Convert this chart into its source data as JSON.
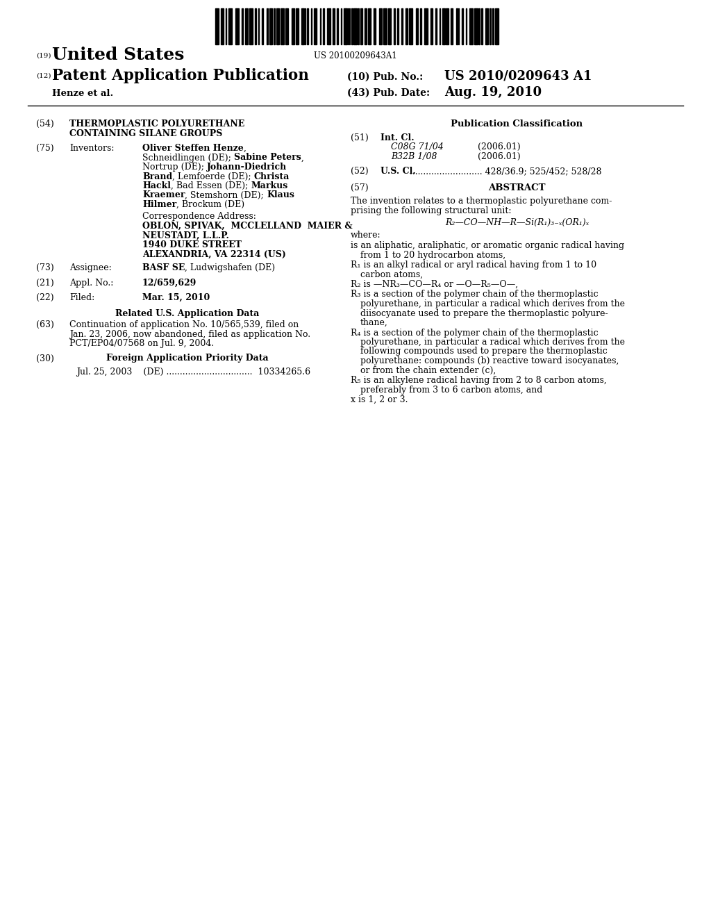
{
  "bg_color": "#ffffff",
  "barcode_text": "US 20100209643A1",
  "header": {
    "country_label": "(19)",
    "country": "United States",
    "type_label": "(12)",
    "type": "Patent Application Publication",
    "author": "Henze et al.",
    "pub_no_label": "(10) Pub. No.:",
    "pub_no": "US 2010/0209643 A1",
    "date_label": "(43) Pub. Date:",
    "date": "Aug. 19, 2010"
  },
  "left_col": {
    "title_label": "(54)",
    "title_line1": "THERMOPLASTIC POLYURETHANE",
    "title_line2": "CONTAINING SILANE GROUPS",
    "inventors_label": "(75)",
    "inventors_key": "Inventors:",
    "inventors_lines": [
      [
        "Oliver Steffen Henze",
        ","
      ],
      [
        "Schneidlingen (DE); ",
        "Sabine Peters",
        ","
      ],
      [
        "Nortrup (DE); ",
        "Johann-Diedrich"
      ],
      [
        "Brand",
        ", Lemfoerde (DE); ",
        "Christa"
      ],
      [
        "Hackl",
        ", Bad Essen (DE); ",
        "Markus"
      ],
      [
        "Kraemer",
        ", Stemshorn (DE); ",
        "Klaus"
      ],
      [
        "Hilmer",
        ", Brockum (DE)"
      ]
    ],
    "corr_label": "Correspondence Address:",
    "corr_lines": [
      "OBLON, SPIVAK,  MCCLELLAND  MAIER &",
      "NEUSTADT, L.L.P.",
      "1940 DUKE STREET",
      "ALEXANDRIA, VA 22314 (US)"
    ],
    "assignee_label": "(73)",
    "assignee_key": "Assignee:",
    "assignee_bold": "BASF SE",
    "assignee_rest": ", Ludwigshafen (DE)",
    "appl_label": "(21)",
    "appl_key": "Appl. No.:",
    "appl_val": "12/659,629",
    "filed_label": "(22)",
    "filed_key": "Filed:",
    "filed_val": "Mar. 15, 2010",
    "related_header": "Related U.S. Application Data",
    "related_label": "(63)",
    "related_text_lines": [
      "Continuation of application No. 10/565,539, filed on",
      "Jan. 23, 2006, now abandoned, filed as application No.",
      "PCT/EP04/07568 on Jul. 9, 2004."
    ],
    "foreign_header": "Foreign Application Priority Data",
    "foreign_label": "(30)",
    "foreign_line": "Jul. 25, 2003    (DE) ................................  10334265.6"
  },
  "right_col": {
    "pub_class_header": "Publication Classification",
    "intcl_label": "(51)",
    "intcl_key": "Int. Cl.",
    "intcl_lines": [
      [
        "C08G 71/04",
        "(2006.01)"
      ],
      [
        "B32B 1/08",
        "(2006.01)"
      ]
    ],
    "uscl_label": "(52)",
    "uscl_key": "U.S. Cl.",
    "uscl_dots": "...........................",
    "uscl_val": "428/36.9; 525/452; 528/28",
    "abstract_label": "(57)",
    "abstract_header": "ABSTRACT",
    "abstract_intro1": "The invention relates to a thermoplastic polyurethane com-",
    "abstract_intro2": "prising the following structural unit:",
    "formula": "R₂—CO—NH—R—Si(R₁)₃₋ₓ(OR₁)ₓ"
  }
}
